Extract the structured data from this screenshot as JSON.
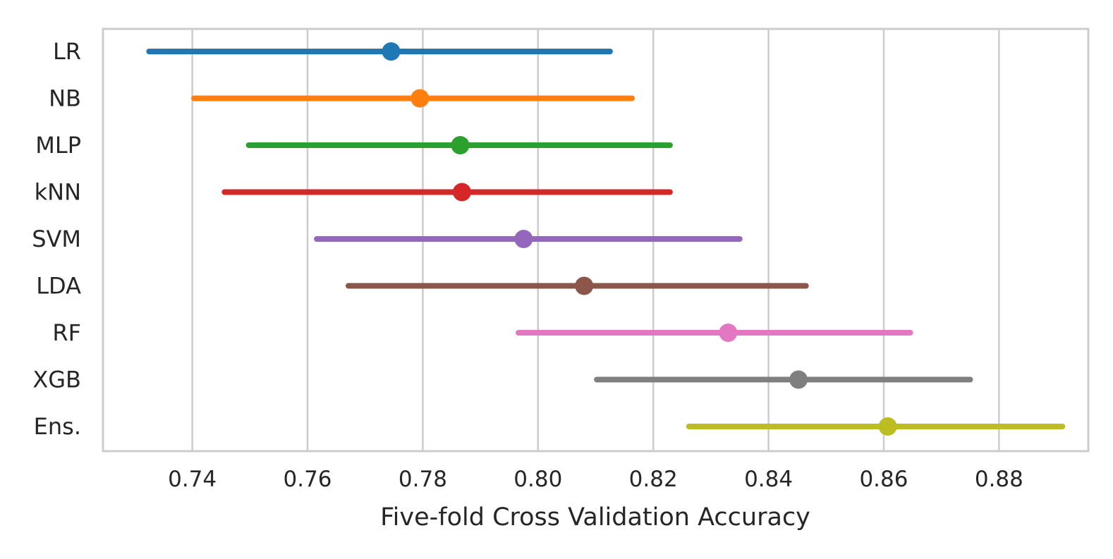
{
  "chart_data": {
    "type": "point-interval",
    "orientation": "horizontal",
    "title": "",
    "xlabel": "Five-fold Cross Validation Accuracy",
    "ylabel": "",
    "xlim": [
      0.7245,
      0.8955
    ],
    "x_ticks": [
      "0.74",
      "0.76",
      "0.78",
      "0.80",
      "0.82",
      "0.84",
      "0.86",
      "0.88"
    ],
    "grid": "vertical",
    "legend": "none",
    "categories": [
      "LR",
      "NB",
      "MLP",
      "kNN",
      "SVM",
      "LDA",
      "RF",
      "XGB",
      "Ens."
    ],
    "means": [
      0.7745,
      0.7795,
      0.7865,
      0.7868,
      0.7975,
      0.808,
      0.833,
      0.8452,
      0.8607
    ],
    "lower": [
      0.7325,
      0.7403,
      0.7498,
      0.7456,
      0.7616,
      0.7671,
      0.7966,
      0.8102,
      0.8262
    ],
    "upper": [
      0.8125,
      0.8163,
      0.8229,
      0.8229,
      0.835,
      0.8465,
      0.8646,
      0.875,
      0.891
    ],
    "colors": [
      "#1f77b4",
      "#ff7f0e",
      "#2ca02c",
      "#d62728",
      "#9467bd",
      "#8c564b",
      "#e377c2",
      "#7f7f7f",
      "#bcbd22"
    ]
  }
}
